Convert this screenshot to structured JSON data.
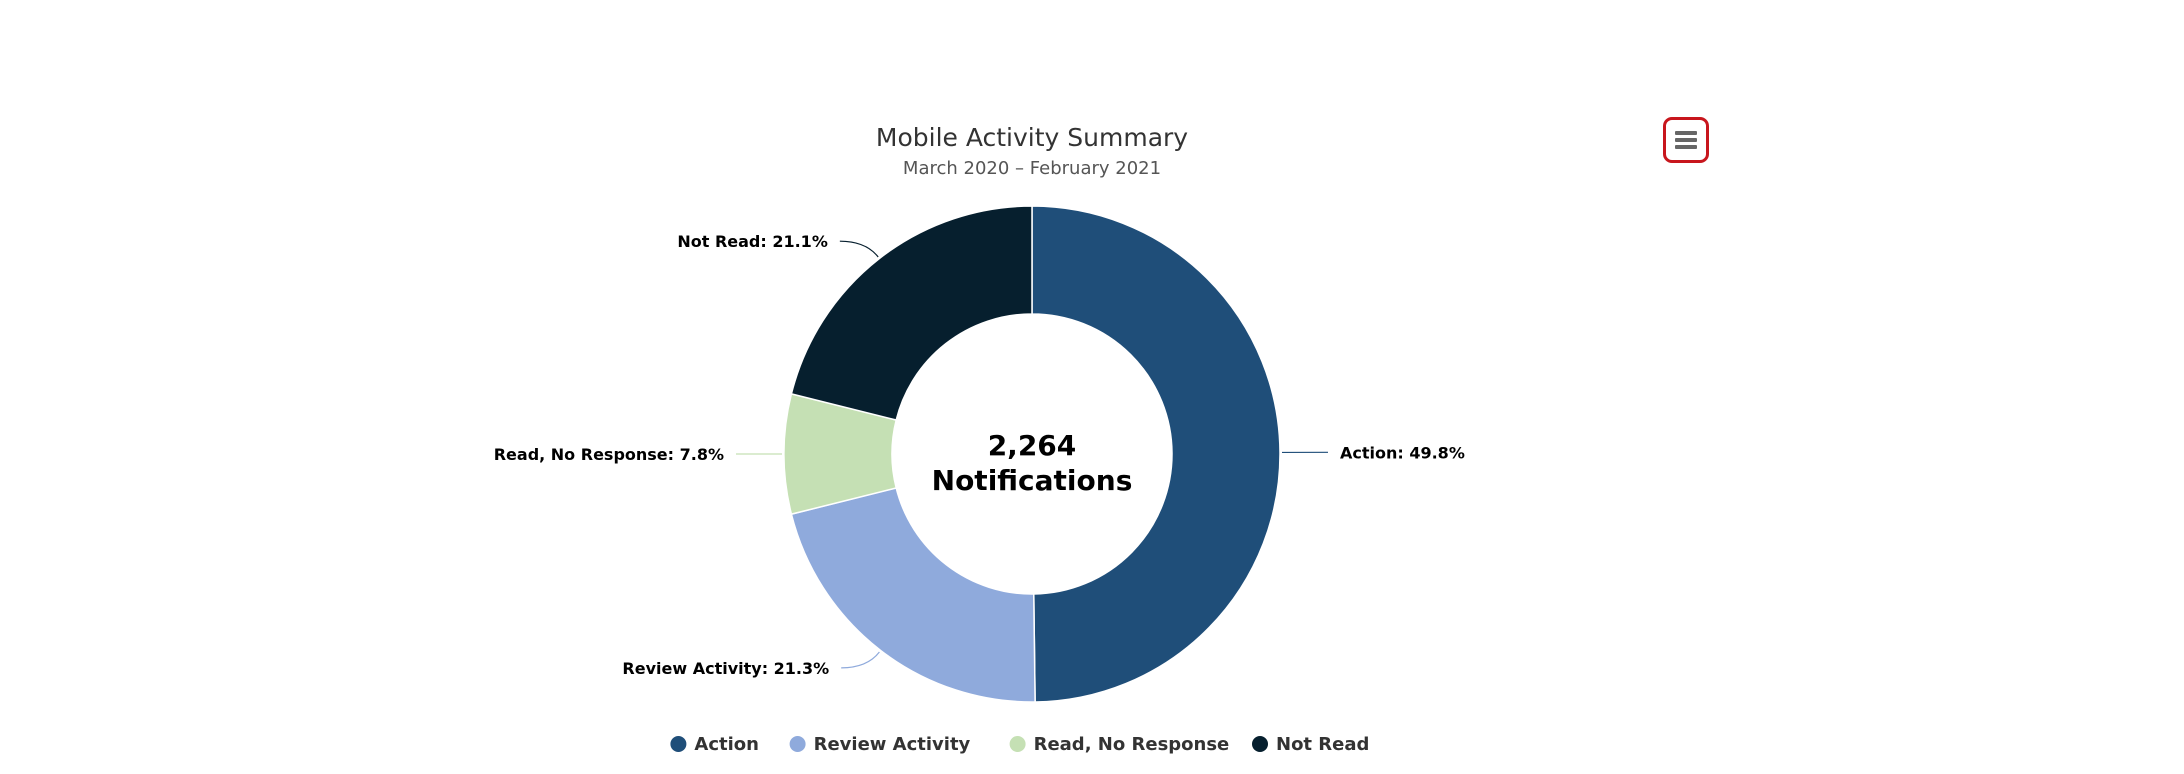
{
  "chart_data": {
    "type": "pie",
    "variant": "donut",
    "title": "Mobile Activity Summary",
    "subtitle": "March 2020 – February 2021",
    "center_text": [
      "2,264",
      "Notifications"
    ],
    "series": [
      {
        "name": "Action",
        "value": 49.8,
        "label": "Action: 49.8%",
        "color": "#1f4e79"
      },
      {
        "name": "Review Activity",
        "value": 21.3,
        "label": "Review Activity: 21.3%",
        "color": "#8faadc"
      },
      {
        "name": "Read, No Response",
        "value": 7.8,
        "label": "Read, No Response: 7.8%",
        "color": "#c5e0b4"
      },
      {
        "name": "Not Read",
        "value": 21.1,
        "label": "Not Read: 21.1%",
        "color": "#061f2e"
      }
    ],
    "legend": {
      "position": "bottom-center",
      "items": [
        "Action",
        "Review Activity",
        "Read, No Response",
        "Not Read"
      ]
    }
  },
  "toolbar": {
    "menu_icon": "hamburger-menu-icon",
    "menu_border_color": "#c8161d"
  }
}
